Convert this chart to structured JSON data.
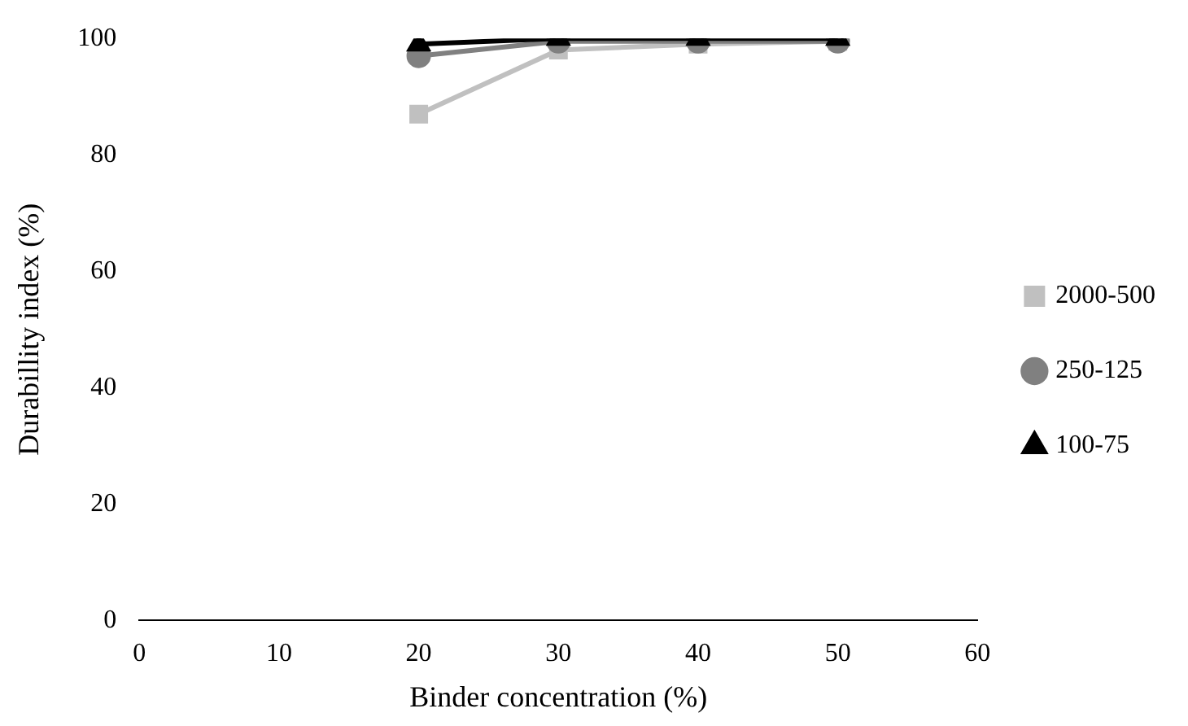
{
  "chart_data": {
    "type": "line",
    "xlabel": "Binder concentration (%)",
    "ylabel": "Durabillity index (%)",
    "x": [
      20,
      30,
      40,
      50
    ],
    "series": [
      {
        "name": "2000-500",
        "color": "#c0c0c0",
        "marker": "square",
        "values": [
          87,
          98,
          99,
          99.5
        ]
      },
      {
        "name": "250-125",
        "color": "#808080",
        "marker": "circle",
        "values": [
          97,
          99.5,
          99.5,
          99.5
        ]
      },
      {
        "name": "100-75",
        "color": "#000000",
        "marker": "triangle",
        "values": [
          99,
          100,
          100,
          100
        ]
      }
    ],
    "xlim": [
      0,
      60
    ],
    "xticks": [
      0,
      10,
      20,
      30,
      40,
      50,
      60
    ],
    "ylim": [
      0,
      100
    ],
    "yticks": [
      0,
      20,
      40,
      60,
      80,
      100
    ],
    "grid": false,
    "legend": "right",
    "line_style": "solid"
  }
}
